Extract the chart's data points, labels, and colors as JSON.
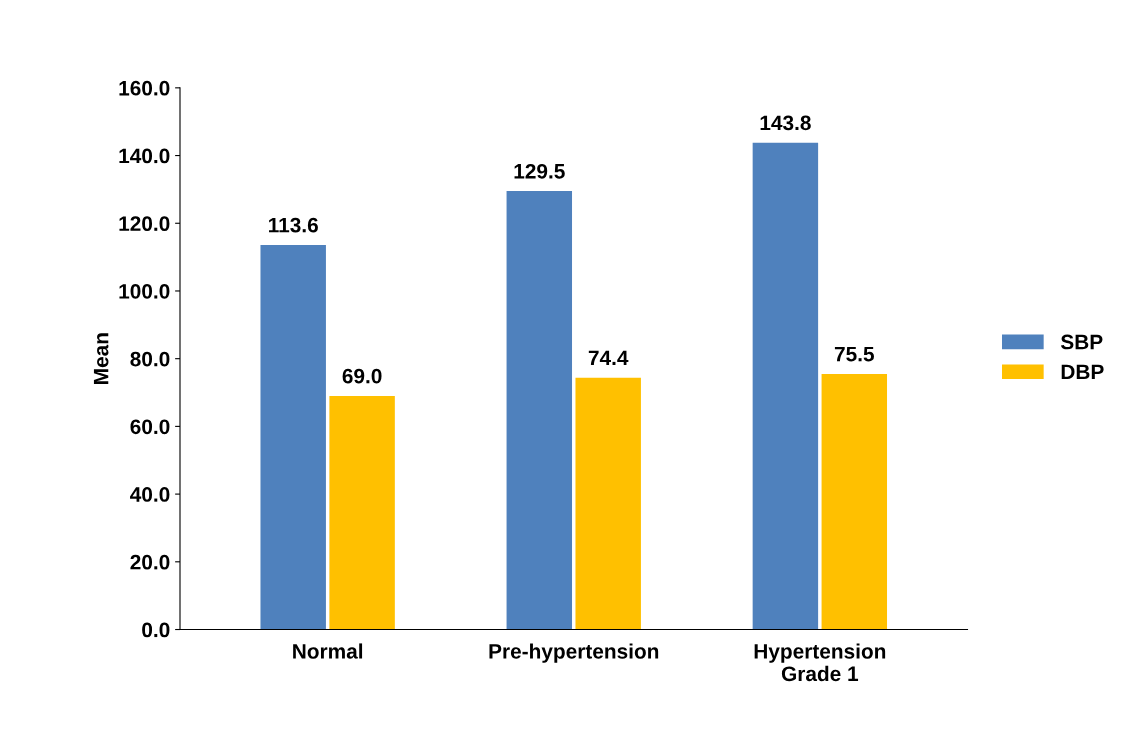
{
  "chart_data": {
    "type": "bar",
    "ylabel": "Mean",
    "categories": [
      "Normal",
      "Pre-hypertension",
      "Hypertension\nGrade 1"
    ],
    "series": [
      {
        "name": "SBP",
        "color": "#4f81bd",
        "values": [
          113.6,
          129.5,
          143.8
        ],
        "value_labels": [
          "113.6",
          "129.5",
          "143.8"
        ]
      },
      {
        "name": "DBP",
        "color": "#ffc000",
        "values": [
          69.0,
          74.4,
          75.5
        ],
        "value_labels": [
          "69.0",
          "74.4",
          "75.5"
        ]
      }
    ],
    "ylim": [
      0,
      160
    ],
    "yticks": [
      {
        "value": 0,
        "label": "0.0"
      },
      {
        "value": 20,
        "label": "20.0"
      },
      {
        "value": 40,
        "label": "40.0"
      },
      {
        "value": 60,
        "label": "60.0"
      },
      {
        "value": 80,
        "label": "80.0"
      },
      {
        "value": 100,
        "label": "100.0"
      },
      {
        "value": 120,
        "label": "120.0"
      },
      {
        "value": 140,
        "label": "140.0"
      },
      {
        "value": 160,
        "label": "160.0"
      }
    ],
    "grid": false,
    "legend": "right"
  }
}
